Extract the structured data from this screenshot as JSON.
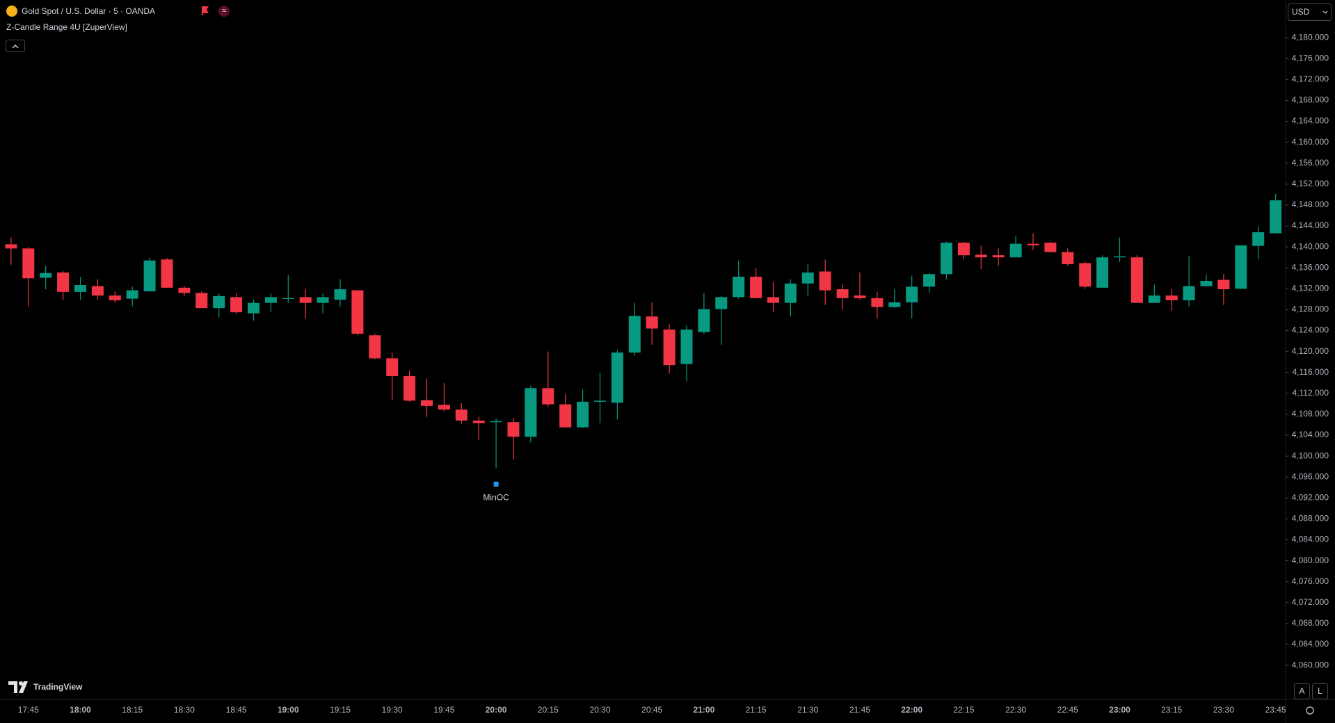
{
  "chart_data": {
    "type": "candlestick",
    "title": "Gold Spot / U.S. Dollar · 5 · OANDA",
    "indicator": "Z-Candle Range 4U [ZuperView]",
    "currency": "USD",
    "annotation": "MinOC",
    "up_color": "#089981",
    "down_color": "#f23645",
    "grid": false,
    "categories": [
      null,
      "17:45",
      null,
      null,
      "18:00",
      null,
      null,
      "18:15",
      null,
      null,
      "18:30",
      null,
      null,
      "18:45",
      null,
      null,
      "19:00",
      null,
      null,
      "19:15",
      null,
      null,
      "19:30",
      null,
      null,
      "19:45",
      null,
      null,
      "20:00",
      null,
      null,
      "20:15",
      null,
      null,
      "20:30",
      null,
      null,
      "20:45",
      null,
      null,
      "21:00",
      null,
      null,
      "21:15",
      null,
      null,
      "21:30",
      null,
      null,
      "21:45",
      null,
      null,
      "22:00",
      null,
      null,
      "22:15",
      null,
      null,
      "22:30",
      null,
      null,
      "22:45",
      null,
      null,
      "23:00",
      null,
      null,
      "23:15",
      null,
      null,
      "23:30",
      null,
      null,
      "23:45"
    ],
    "open": [
      4140.5,
      4139.7,
      4134.1,
      4135.1,
      4131.4,
      4132.5,
      4130.7,
      4130.1,
      4131.5,
      4137.6,
      4132.2,
      4131.2,
      4128.3,
      4130.4,
      4127.3,
      4129.3,
      4130.1,
      4130.4,
      4129.3,
      4129.9,
      4131.7,
      4123.1,
      4118.7,
      4115.3,
      4110.7,
      4109.8,
      4108.9,
      4106.8,
      4106.5,
      4106.5,
      4103.7,
      4113.0,
      4109.9,
      4105.5,
      4110.4,
      4110.2,
      4119.8,
      4126.7,
      4124.2,
      4117.6,
      4123.7,
      4128.1,
      4130.4,
      4134.3,
      4130.4,
      4129.3,
      4133.0,
      4135.3,
      4131.9,
      4130.7,
      4130.2,
      4128.5,
      4129.4,
      4132.4,
      4134.8,
      4140.8,
      4138.5,
      4138.4,
      4138.0,
      4140.6,
      4140.8,
      4139.0,
      4136.9,
      4132.2,
      4138.0,
      4138.0,
      4129.3,
      4130.7,
      4129.8,
      4132.5,
      4133.7,
      4132.0,
      4140.2,
      4142.6
    ],
    "high": [
      4141.8,
      4140.0,
      4136.4,
      4135.4,
      4134.3,
      4133.8,
      4131.5,
      4132.4,
      4137.9,
      4137.9,
      4132.5,
      4131.5,
      4131.1,
      4131.1,
      4129.9,
      4131.1,
      4134.6,
      4131.9,
      4131.1,
      4133.8,
      4131.7,
      4123.4,
      4119.8,
      4116.4,
      4114.8,
      4114.0,
      4110.1,
      4107.5,
      4107.2,
      4107.3,
      4113.5,
      4120.0,
      4111.9,
      4112.7,
      4115.9,
      4120.3,
      4129.3,
      4129.4,
      4125.2,
      4125.0,
      4131.2,
      4130.6,
      4137.4,
      4135.9,
      4133.3,
      4133.8,
      4136.7,
      4137.6,
      4132.8,
      4135.1,
      4131.4,
      4131.9,
      4134.5,
      4135.0,
      4141.0,
      4141.0,
      4140.2,
      4139.7,
      4142.1,
      4142.6,
      4141.0,
      4139.7,
      4137.2,
      4138.4,
      4141.8,
      4138.4,
      4132.8,
      4131.9,
      4138.2,
      4134.8,
      4134.8,
      4140.3,
      4143.9,
      4150.1
    ],
    "low": [
      4136.6,
      4128.6,
      4131.9,
      4129.8,
      4129.9,
      4129.9,
      4129.3,
      4128.6,
      4131.5,
      4132.2,
      4130.6,
      4128.3,
      4126.5,
      4127.2,
      4125.9,
      4127.6,
      4129.3,
      4126.3,
      4127.3,
      4128.6,
      4123.1,
      4118.5,
      4110.7,
      4110.4,
      4107.5,
      4108.5,
      4106.2,
      4103.1,
      4097.7,
      4099.4,
      4102.6,
      4109.4,
      4105.5,
      4105.4,
      4106.3,
      4107.0,
      4119.2,
      4121.3,
      4115.8,
      4114.3,
      4123.4,
      4121.3,
      4130.1,
      4130.2,
      4127.6,
      4126.7,
      4130.6,
      4128.9,
      4128.0,
      4129.9,
      4126.3,
      4128.3,
      4126.3,
      4131.2,
      4133.8,
      4137.6,
      4135.8,
      4136.4,
      4138.0,
      4139.4,
      4138.9,
      4136.4,
      4132.0,
      4132.2,
      4137.1,
      4129.3,
      4129.3,
      4127.8,
      4128.6,
      4132.4,
      4128.9,
      4132.0,
      4137.6,
      4142.6
    ],
    "close": [
      4139.7,
      4134.0,
      4135.0,
      4131.4,
      4132.7,
      4130.7,
      4129.8,
      4131.7,
      4137.4,
      4132.2,
      4131.2,
      4128.3,
      4130.6,
      4127.5,
      4129.3,
      4130.4,
      4130.2,
      4129.3,
      4130.4,
      4131.9,
      4123.4,
      4118.7,
      4115.3,
      4110.6,
      4109.6,
      4108.9,
      4106.8,
      4106.3,
      4106.7,
      4103.7,
      4113.0,
      4109.9,
      4105.5,
      4110.4,
      4110.6,
      4119.8,
      4126.8,
      4124.4,
      4117.4,
      4124.2,
      4128.1,
      4130.4,
      4134.3,
      4130.2,
      4129.3,
      4133.0,
      4135.1,
      4131.7,
      4130.2,
      4130.2,
      4128.5,
      4129.4,
      4132.4,
      4134.8,
      4140.8,
      4138.4,
      4138.0,
      4138.0,
      4140.6,
      4140.3,
      4139.0,
      4136.7,
      4132.4,
      4138.0,
      4138.2,
      4129.3,
      4130.7,
      4129.8,
      4132.5,
      4133.5,
      4131.9,
      4140.3,
      4142.8,
      4148.9
    ],
    "ylim": [
      4053.5,
      4187.2
    ],
    "yticks": [
      {
        "value": 4060,
        "label": "4,060.000"
      },
      {
        "value": 4064,
        "label": "4,064.000"
      },
      {
        "value": 4068,
        "label": "4,068.000"
      },
      {
        "value": 4072,
        "label": "4,072.000"
      },
      {
        "value": 4076,
        "label": "4,076.000"
      },
      {
        "value": 4080,
        "label": "4,080.000"
      },
      {
        "value": 4084,
        "label": "4,084.000"
      },
      {
        "value": 4088,
        "label": "4,088.000"
      },
      {
        "value": 4092,
        "label": "4,092.000"
      },
      {
        "value": 4096,
        "label": "4,096.000"
      },
      {
        "value": 4100,
        "label": "4,100.000"
      },
      {
        "value": 4104,
        "label": "4,104.000"
      },
      {
        "value": 4108,
        "label": "4,108.000"
      },
      {
        "value": 4112,
        "label": "4,112.000"
      },
      {
        "value": 4116,
        "label": "4,116.000"
      },
      {
        "value": 4120,
        "label": "4,120.000"
      },
      {
        "value": 4124,
        "label": "4,124.000"
      },
      {
        "value": 4128,
        "label": "4,128.000"
      },
      {
        "value": 4132,
        "label": "4,132.000"
      },
      {
        "value": 4136,
        "label": "4,136.000"
      },
      {
        "value": 4140,
        "label": "4,140.000"
      },
      {
        "value": 4144,
        "label": "4,144.000"
      },
      {
        "value": 4148,
        "label": "4,148.000"
      },
      {
        "value": 4152,
        "label": "4,152.000"
      },
      {
        "value": 4156,
        "label": "4,156.000"
      },
      {
        "value": 4160,
        "label": "4,160.000"
      },
      {
        "value": 4164,
        "label": "4,164.000"
      },
      {
        "value": 4168,
        "label": "4,168.000"
      },
      {
        "value": 4172,
        "label": "4,172.000"
      },
      {
        "value": 4176,
        "label": "4,176.000"
      },
      {
        "value": 4180,
        "label": "4,180.000"
      }
    ]
  },
  "brand": "TradingView",
  "buttons": [
    "A",
    "L"
  ]
}
